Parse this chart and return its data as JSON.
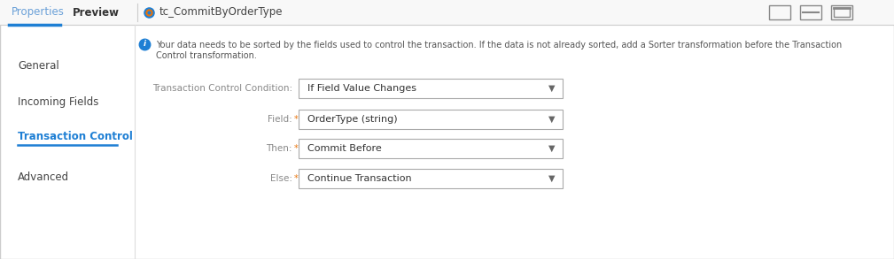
{
  "bg_color": "#ffffff",
  "border_color": "#cccccc",
  "tab_bar_bg": "#f8f8f8",
  "tab_active_underline": "#1e7fd4",
  "tab_separator_color": "#cccccc",
  "title_bar_texts": [
    "Properties",
    "Preview",
    "tc_CommitByOrderType"
  ],
  "properties_color": "#6aa0d8",
  "preview_color": "#333333",
  "title_color": "#444444",
  "left_nav_items": [
    "General",
    "Incoming Fields",
    "Transaction Control",
    "Advanced"
  ],
  "left_nav_active": "Transaction Control",
  "left_nav_active_color": "#1e7fd4",
  "left_nav_normal_color": "#444444",
  "left_nav_underline_color": "#1e7fd4",
  "info_text_line1": "Your data needs to be sorted by the fields used to control the transaction. If the data is not already sorted, add a Sorter transformation before the Transaction",
  "info_text_line2": "Control transformation.",
  "info_icon_color": "#1e7fd4",
  "form_rows": [
    {
      "label": "Transaction Control Condition:",
      "value": "If Field Value Changes",
      "required": false,
      "help": false
    },
    {
      "label": "Field:",
      "value": "OrderType (string)",
      "required": true,
      "help": true
    },
    {
      "label": "Then:",
      "value": "Commit Before",
      "required": true,
      "help": true
    },
    {
      "label": "Else:",
      "value": "Continue Transaction",
      "required": true,
      "help": true
    }
  ],
  "dropdown_border": "#aaaaaa",
  "dropdown_text_color": "#333333",
  "label_color": "#888888",
  "required_color": "#e8730a",
  "help_icon_color": "#999999",
  "window_icons_color": "#888888",
  "nav_panel_right_border": "#dddddd",
  "outer_border_color": "#cccccc"
}
